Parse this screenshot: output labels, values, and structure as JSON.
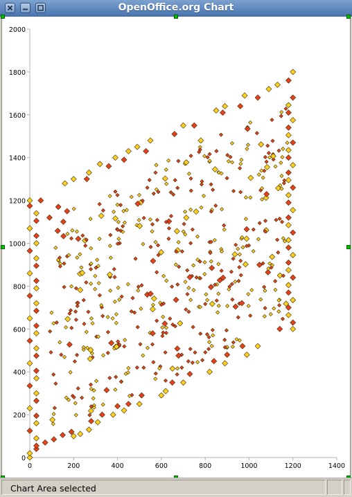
{
  "window": {
    "title": "OpenOffice.org Chart",
    "buttons": [
      "close",
      "minimize",
      "maximize"
    ]
  },
  "status": {
    "text": "Chart Area selected"
  },
  "colors": {
    "series_red": "#e8401c",
    "series_yellow": "#ffd020",
    "handle": "#00c000"
  },
  "chart_data": {
    "type": "scatter",
    "title": "",
    "xlabel": "",
    "ylabel": "",
    "xlim": [
      0,
      1400
    ],
    "ylim": [
      0,
      2000
    ],
    "x_ticks": [
      0,
      200,
      400,
      600,
      800,
      1000,
      1200,
      1400
    ],
    "y_ticks": [
      0,
      200,
      400,
      600,
      800,
      1000,
      1200,
      1400,
      1600,
      1800,
      2000
    ],
    "grid": false,
    "legend": "none",
    "marker": "diamond",
    "note_on_points": "several hundred points filling a parallelogram region; edges listed explicitly, interior generated deterministically",
    "edge_points": [
      {
        "x": 0,
        "y": 0,
        "c": "y"
      },
      {
        "x": 30,
        "y": 40,
        "c": "r"
      },
      {
        "x": 70,
        "y": 70,
        "c": "r"
      },
      {
        "x": 110,
        "y": 85,
        "c": "r"
      },
      {
        "x": 150,
        "y": 105,
        "c": "r"
      },
      {
        "x": 190,
        "y": 120,
        "c": "r"
      },
      {
        "x": 200,
        "y": 100,
        "c": "y"
      },
      {
        "x": 230,
        "y": 110,
        "c": "y"
      },
      {
        "x": 270,
        "y": 130,
        "c": "y"
      },
      {
        "x": 280,
        "y": 170,
        "c": "r"
      },
      {
        "x": 310,
        "y": 165,
        "c": "y"
      },
      {
        "x": 330,
        "y": 200,
        "c": "r"
      },
      {
        "x": 380,
        "y": 200,
        "c": "y"
      },
      {
        "x": 400,
        "y": 240,
        "c": "r"
      },
      {
        "x": 430,
        "y": 220,
        "c": "y"
      },
      {
        "x": 450,
        "y": 250,
        "c": "r"
      },
      {
        "x": 500,
        "y": 250,
        "c": "y"
      },
      {
        "x": 510,
        "y": 290,
        "c": "r"
      },
      {
        "x": 600,
        "y": 290,
        "c": "y"
      },
      {
        "x": 620,
        "y": 310,
        "c": "y"
      },
      {
        "x": 650,
        "y": 350,
        "c": "r"
      },
      {
        "x": 700,
        "y": 350,
        "c": "y"
      },
      {
        "x": 730,
        "y": 390,
        "c": "r"
      },
      {
        "x": 820,
        "y": 400,
        "c": "y"
      },
      {
        "x": 840,
        "y": 450,
        "c": "r"
      },
      {
        "x": 890,
        "y": 440,
        "c": "y"
      },
      {
        "x": 900,
        "y": 480,
        "c": "r"
      },
      {
        "x": 970,
        "y": 520,
        "c": "r"
      },
      {
        "x": 990,
        "y": 480,
        "c": "y"
      },
      {
        "x": 1040,
        "y": 520,
        "c": "y"
      },
      {
        "x": 1140,
        "y": 600,
        "c": "r"
      },
      {
        "x": 1200,
        "y": 600,
        "c": "y"
      },
      {
        "x": 0,
        "y": 1200,
        "c": "y"
      },
      {
        "x": 50,
        "y": 1200,
        "c": "r"
      },
      {
        "x": 90,
        "y": 1120,
        "c": "r"
      },
      {
        "x": 130,
        "y": 1170,
        "c": "r"
      },
      {
        "x": 160,
        "y": 1280,
        "c": "y"
      },
      {
        "x": 170,
        "y": 1150,
        "c": "r"
      },
      {
        "x": 200,
        "y": 1300,
        "c": "y"
      },
      {
        "x": 260,
        "y": 1300,
        "c": "r"
      },
      {
        "x": 270,
        "y": 1330,
        "c": "y"
      },
      {
        "x": 320,
        "y": 1370,
        "c": "y"
      },
      {
        "x": 360,
        "y": 1360,
        "c": "r"
      },
      {
        "x": 390,
        "y": 1400,
        "c": "y"
      },
      {
        "x": 430,
        "y": 1390,
        "c": "r"
      },
      {
        "x": 450,
        "y": 1430,
        "c": "y"
      },
      {
        "x": 490,
        "y": 1450,
        "c": "y"
      },
      {
        "x": 530,
        "y": 1430,
        "c": "r"
      },
      {
        "x": 550,
        "y": 1480,
        "c": "y"
      },
      {
        "x": 660,
        "y": 1510,
        "c": "r"
      },
      {
        "x": 700,
        "y": 1550,
        "c": "y"
      },
      {
        "x": 750,
        "y": 1550,
        "c": "r"
      },
      {
        "x": 780,
        "y": 1480,
        "c": "y"
      },
      {
        "x": 850,
        "y": 1620,
        "c": "y"
      },
      {
        "x": 880,
        "y": 1610,
        "c": "r"
      },
      {
        "x": 890,
        "y": 1640,
        "c": "y"
      },
      {
        "x": 960,
        "y": 1640,
        "c": "r"
      },
      {
        "x": 980,
        "y": 1690,
        "c": "y"
      },
      {
        "x": 1040,
        "y": 1680,
        "c": "r"
      },
      {
        "x": 1090,
        "y": 1720,
        "c": "y"
      },
      {
        "x": 1130,
        "y": 1740,
        "c": "y"
      },
      {
        "x": 1180,
        "y": 1760,
        "c": "r"
      },
      {
        "x": 1200,
        "y": 1800,
        "c": "y"
      }
    ],
    "left_column": {
      "x": 0,
      "x2": 30,
      "y_from": 0,
      "y_to": 1200,
      "step": 35
    },
    "right_column": {
      "x": 1200,
      "x2": 1180,
      "y_from": 600,
      "y_to": 1700,
      "step": 35
    }
  }
}
